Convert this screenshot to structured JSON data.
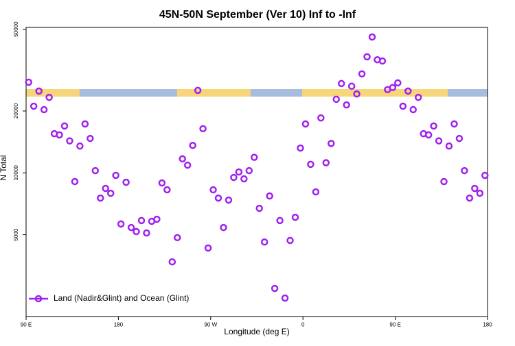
{
  "chart_data": {
    "type": "scatter",
    "title": "45N-50N September (Ver 10)   Inf to -Inf",
    "x_label": "Longitude (deg E)",
    "y_label": "N Total",
    "y_scale": "log",
    "legend_position": "bottom-left",
    "xlim": [
      90,
      540
    ],
    "ylim": [
      2000,
      51000
    ],
    "xticks": [
      {
        "value": 90,
        "label": "90 E"
      },
      {
        "value": 180,
        "label": "180"
      },
      {
        "value": 270,
        "label": "90 W"
      },
      {
        "value": 360,
        "label": "0"
      },
      {
        "value": 450,
        "label": "90 E"
      },
      {
        "value": 540,
        "label": "180"
      }
    ],
    "yticks": [
      5000,
      10000,
      20000,
      50000
    ],
    "series": [
      {
        "name": "Land (Nadir&Glint) and Ocean (Glint)",
        "color": "#a020f0",
        "x": [
          92.5,
          97.5,
          102.5,
          107.5,
          112.5,
          117.5,
          122.5,
          127.5,
          132.5,
          137.5,
          142.5,
          147.5,
          152.5,
          157.5,
          162.5,
          167.5,
          172.5,
          177.5,
          182.5,
          187.5,
          192.5,
          197.5,
          202.5,
          207.5,
          212.5,
          217.5,
          222.5,
          227.5,
          232.5,
          237.5,
          242.5,
          247.5,
          252.5,
          257.5,
          262.5,
          267.5,
          272.5,
          277.5,
          282.5,
          287.5,
          292.5,
          297.5,
          302.5,
          307.5,
          312.5,
          317.5,
          322.5,
          327.5,
          332.5,
          337.5,
          342.5,
          347.5,
          352.5,
          357.5,
          362.5,
          367.5,
          372.5,
          377.5,
          382.5,
          387.5,
          392.5,
          397.5,
          402.5,
          407.5,
          412.5,
          417.5,
          422.5,
          427.5,
          432.5,
          437.5,
          442.5,
          447.5,
          452.5,
          457.5,
          462.5,
          467.5,
          472.5,
          477.5,
          482.5,
          487.5,
          492.5,
          497.5,
          502.5,
          507.5,
          512.5,
          517.5,
          522.5,
          527.5,
          532.5,
          537.5
        ],
        "values": [
          27600,
          21100,
          25000,
          20300,
          23300,
          15500,
          15300,
          16900,
          14300,
          9070,
          13500,
          17300,
          14700,
          10250,
          7540,
          8400,
          7960,
          9720,
          5640,
          9000,
          5420,
          5180,
          5860,
          5100,
          5810,
          5950,
          8930,
          8270,
          3690,
          4840,
          11700,
          10900,
          13600,
          25200,
          16400,
          4310,
          8270,
          7540,
          5420,
          7370,
          9500,
          10100,
          9350,
          10250,
          11900,
          6720,
          4610,
          7720,
          2740,
          5860,
          2460,
          4690,
          6080,
          13200,
          17300,
          11000,
          8080,
          18500,
          11200,
          13900,
          22800,
          27200,
          21400,
          26400,
          24200,
          30300,
          36700,
          45800,
          35500,
          35000,
          25400,
          26000,
          27400,
          21100,
          25000,
          20300,
          23300,
          15500,
          15300,
          16900,
          14300,
          9070,
          13500,
          17300,
          14700,
          10250,
          7540,
          8400,
          7960,
          9720
        ]
      }
    ]
  }
}
